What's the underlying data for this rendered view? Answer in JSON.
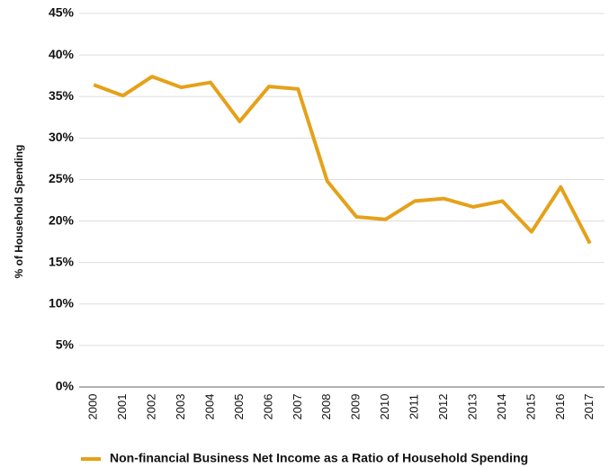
{
  "chart_data": {
    "type": "line",
    "y_label": "% of Household Spending",
    "categories": [
      "2000",
      "2001",
      "2002",
      "2003",
      "2004",
      "2005",
      "2006",
      "2007",
      "2008",
      "2009",
      "2010",
      "2011",
      "2012",
      "2013",
      "2014",
      "2015",
      "2016",
      "2017"
    ],
    "series": [
      {
        "name": "Non-financial Business Net Income as a Ratio of Household Spending",
        "color": "#e5a11a",
        "values": [
          36.4,
          35.1,
          37.4,
          36.1,
          36.7,
          32.0,
          36.2,
          35.9,
          24.8,
          20.5,
          20.2,
          22.4,
          22.7,
          21.7,
          22.4,
          18.7,
          24.1,
          17.3
        ]
      }
    ],
    "ylim": [
      0,
      45
    ],
    "yticks": [
      {
        "value": 0,
        "label": "0%"
      },
      {
        "value": 5,
        "label": "5%"
      },
      {
        "value": 10,
        "label": "10%"
      },
      {
        "value": 15,
        "label": "15%"
      },
      {
        "value": 20,
        "label": "20%"
      },
      {
        "value": 25,
        "label": "25%"
      },
      {
        "value": 30,
        "label": "30%"
      },
      {
        "value": 35,
        "label": "35%"
      },
      {
        "value": 40,
        "label": "40%"
      },
      {
        "value": 45,
        "label": "45%"
      }
    ],
    "grid": true
  }
}
